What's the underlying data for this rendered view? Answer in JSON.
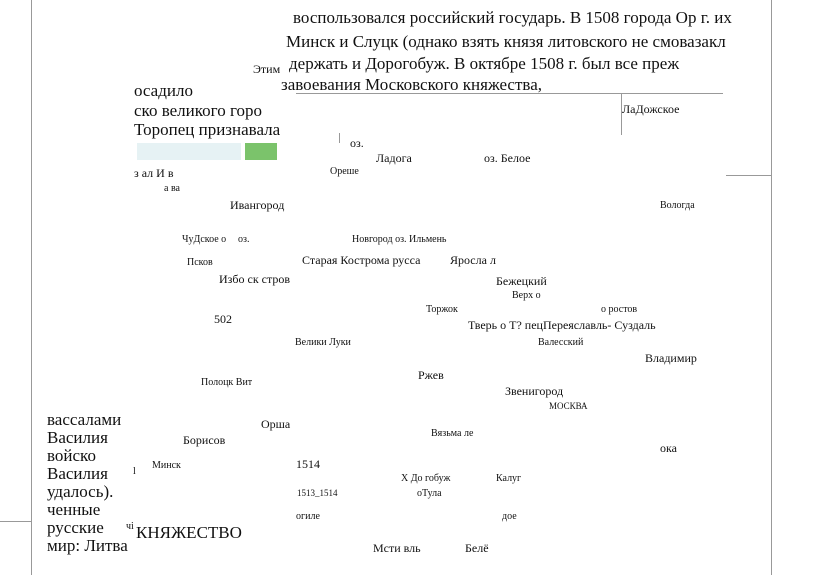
{
  "paragraph_top": [
    "воспользовался российский государь. В 1508 города Ор   г. их",
    "Минск и Слуцк (однако взять князя литовского не смовазакл",
    "держать и Дорогобуж. В октябре 1508 г. был все преж",
    "завоевания Московского княжества,"
  ],
  "fragment_etim": "Этим",
  "paragraph_left_top": [
    "осадило",
    "ско великого горо",
    "Торопец признавала"
  ],
  "paragraph_left_bottom": [
    "вассалами",
    "Василия",
    "войско",
    "Василия",
    "удалось).",
    "ченные",
    "русские",
    "мир: Литва"
  ],
  "map_labels": {
    "ladozhskoe": "ЛаДожское",
    "oz1": "оз.",
    "ladoga": "Ладога",
    "oz_beloe": "оз. Белое",
    "oreshek": "Ореше",
    "zal_i_v": "з ал И в",
    "a_va": "а ва",
    "ivangorod": "Ивангород",
    "vologda": "Вологда",
    "chudskoe": "ЧуДское о",
    "oz2": "оз.",
    "novgorod": "Новгород оз. Ильмень",
    "pskov": "Псков",
    "staraya": "Старая  Кострома русса",
    "yaroslavl": "Яросла л",
    "izborsk": "Избо ск стров",
    "bezhetsky": "Бежецкий",
    "verkh": "Верх о",
    "torzhok": "Торжок",
    "rostov": "о ростов",
    "n502": "502",
    "tver": "Тверь о Т? пецПереяславль- Суздаль",
    "velikie_luki": "Велики Луки",
    "valessky": "Валесский",
    "vladimir": "Владимир",
    "rzhev": "Ржев",
    "polotsk": "Полоцк Вит",
    "zvenigorod": "Звенигород",
    "moskva": "МОСКВА",
    "orsha": "Орша",
    "vyazma": "Вязьма ле",
    "borisov": "Борисов",
    "oka": "ока",
    "minsk": "Минск",
    "n1514": "1514",
    "dorogobuzh": "Х До гобуж",
    "kaluga": "Калуг",
    "n1513": "1513_1514",
    "tula": "оТула",
    "mogilev": "огиле",
    "dos": "дое",
    "knyazhestvo": "КНЯЖЕСТВО",
    "chi": "чі",
    "mstislavl": "Мсти вль",
    "belev": "Белё",
    "tick": "l"
  }
}
